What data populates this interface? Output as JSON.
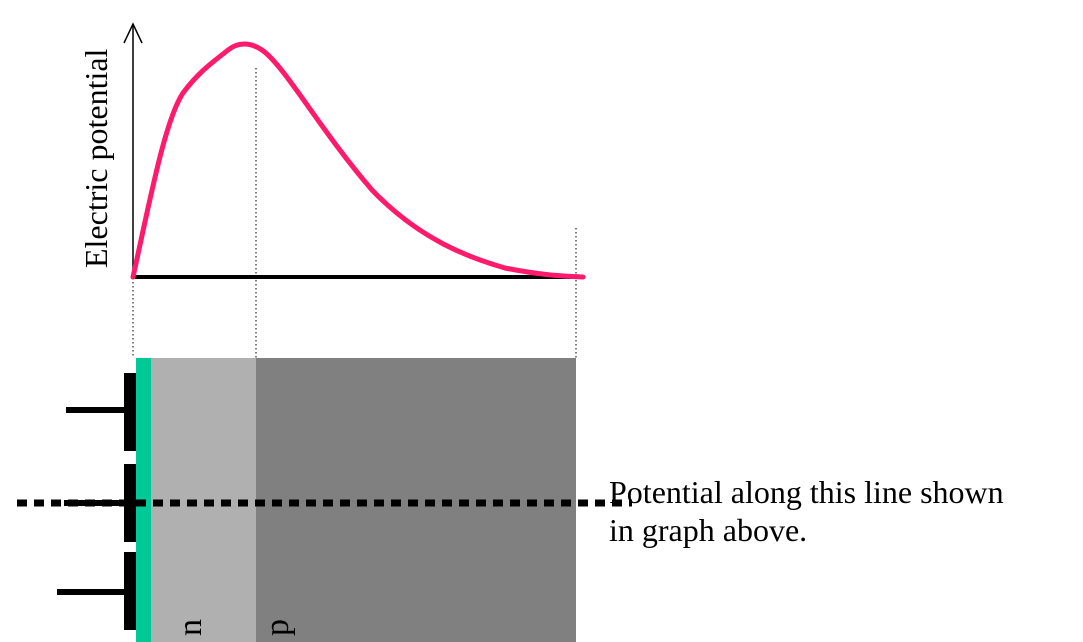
{
  "graph": {
    "ylabel": "Electric potential"
  },
  "device": {
    "regions": [
      {
        "label": "n"
      },
      {
        "label": "p"
      }
    ]
  },
  "annotation": {
    "lines": [
      "Potential along this line shown",
      "in graph above."
    ]
  },
  "colors": {
    "curve": "#ff1a6c",
    "axis": "#000000",
    "n_region": "#b0b0b0",
    "p_region": "#808080",
    "oxide": "#00c896",
    "gate": "#000000",
    "guide_line": "#000000"
  }
}
